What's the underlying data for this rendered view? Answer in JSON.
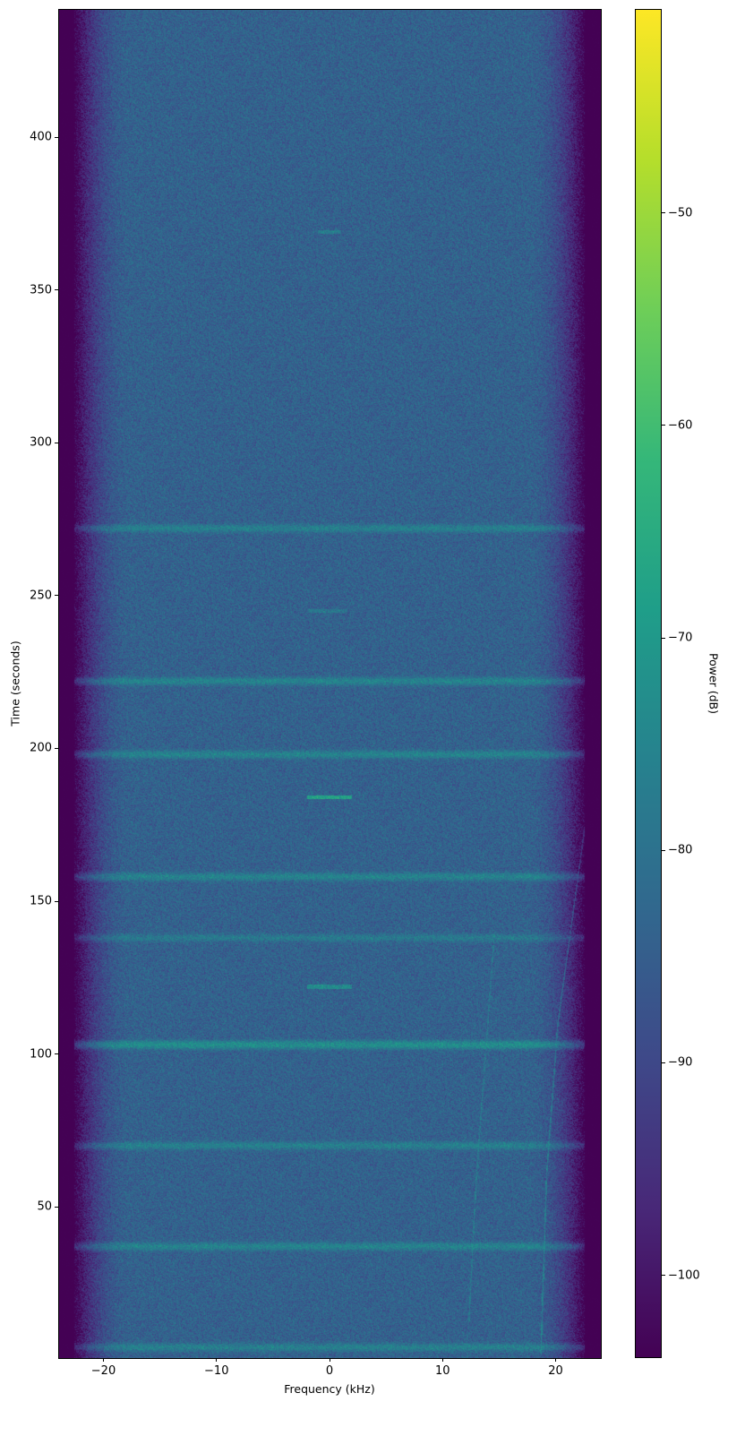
{
  "chart_data": {
    "type": "heatmap",
    "subtype": "spectrogram",
    "title": "",
    "xlabel": "Frequency (kHz)",
    "ylabel": "Time (seconds)",
    "xlim": [
      -24,
      24
    ],
    "ylim": [
      0.5,
      442
    ],
    "xticks": [
      -20,
      -10,
      0,
      10,
      20
    ],
    "xtick_labels": [
      "−20",
      "−10",
      "0",
      "10",
      "20"
    ],
    "yticks": [
      50,
      100,
      150,
      200,
      250,
      300,
      350,
      400
    ],
    "ytick_labels": [
      "50",
      "100",
      "150",
      "200",
      "250",
      "300",
      "350",
      "400"
    ],
    "colormap": "viridis",
    "colorbar": {
      "label": "Power (dB)",
      "range": [
        -103.9,
        -40.4
      ],
      "ticks": [
        -50,
        -60,
        -70,
        -80,
        -90,
        -100
      ],
      "tick_labels": [
        "−50",
        "−60",
        "−70",
        "−80",
        "−90",
        "−100"
      ]
    },
    "noise_floor_db": -84,
    "passband_khz": [
      -21,
      21
    ],
    "rolloff_floor_db": -104,
    "broadband_bursts": [
      {
        "time": 4,
        "level_db": -77
      },
      {
        "time": 37,
        "level_db": -76
      },
      {
        "time": 70,
        "level_db": -77
      },
      {
        "time": 103,
        "level_db": -73
      },
      {
        "time": 138,
        "level_db": -79
      },
      {
        "time": 158,
        "level_db": -76
      },
      {
        "time": 198,
        "level_db": -76
      },
      {
        "time": 222,
        "level_db": -76
      },
      {
        "time": 272,
        "level_db": -77
      }
    ],
    "narrowband_tones": [
      {
        "time": 184,
        "freq_khz": [
          -2,
          2
        ],
        "level_db": -68
      },
      {
        "time": 122,
        "freq_khz": [
          -2,
          2
        ],
        "level_db": -74
      },
      {
        "time": 369,
        "freq_khz": [
          -1,
          1
        ],
        "level_db": -78
      },
      {
        "time": 245,
        "freq_khz": [
          -2,
          1.5
        ],
        "level_db": -80
      }
    ],
    "chirps": [
      {
        "freq_khz": [
          18.7,
          19.2,
          20.2,
          22.8
        ],
        "time": [
          2,
          60,
          110,
          180
        ],
        "level_db": -76
      },
      {
        "freq_khz": [
          12.3,
          13,
          14.6
        ],
        "time": [
          10,
          60,
          140
        ],
        "level_db": -80
      }
    ],
    "colors": {
      "viridis": [
        "#440154",
        "#482878",
        "#3e4989",
        "#31688e",
        "#26828e",
        "#1f9e89",
        "#35b779",
        "#6ece58",
        "#b5de2b",
        "#fde725"
      ]
    }
  }
}
